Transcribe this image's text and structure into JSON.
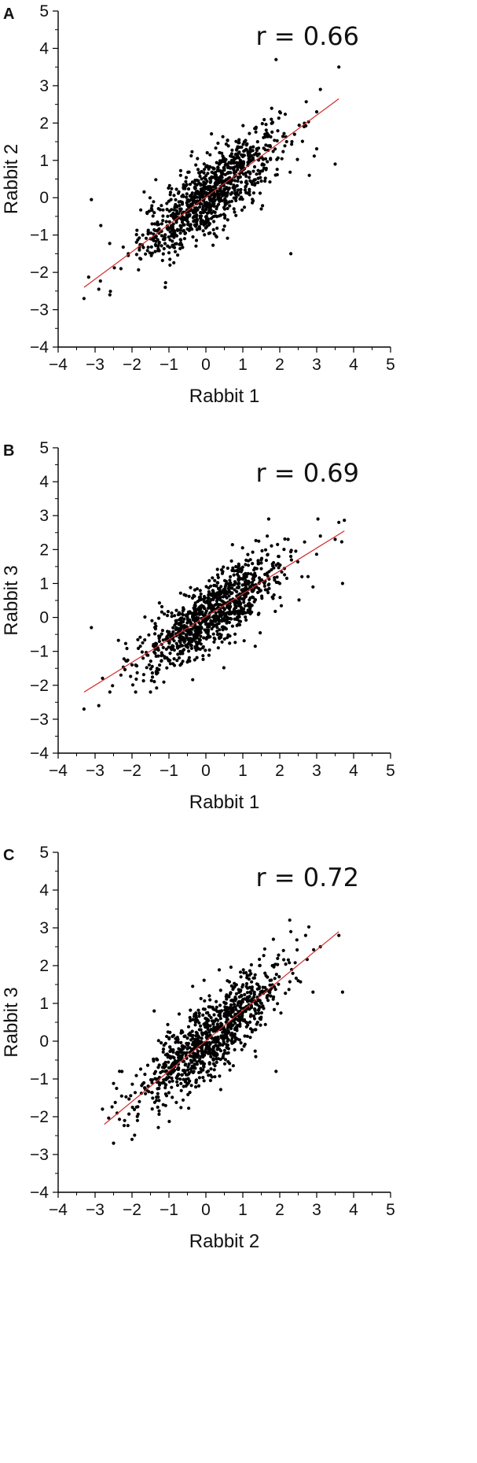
{
  "chart_data": [
    {
      "type": "scatter",
      "panel": "A",
      "xlabel": "Rabbit 1",
      "ylabel": "Rabbit 2",
      "annotation": "r = 0.66",
      "xlim": [
        -4,
        5
      ],
      "ylim": [
        -4,
        5
      ],
      "xticks": [
        -4,
        -3,
        -2,
        -1,
        0,
        1,
        2,
        3,
        4,
        5
      ],
      "yticks": [
        -4,
        -3,
        -2,
        -1,
        0,
        1,
        2,
        3,
        4,
        5
      ],
      "grid": false,
      "point_color": "#000000",
      "fit_color": "#d42a2a",
      "fit_line": [
        [
          -3.3,
          -2.4
        ],
        [
          3.6,
          2.65
        ]
      ],
      "points_sample": [
        [
          -3.3,
          -2.7
        ],
        [
          -3.1,
          -0.05
        ],
        [
          -2.9,
          -2.45
        ],
        [
          -2.6,
          -2.6
        ],
        [
          -2.3,
          -1.9
        ],
        [
          -2.1,
          -1.5
        ],
        [
          -1.8,
          -1.4
        ],
        [
          -1.5,
          -1.1
        ],
        [
          -1.2,
          -0.9
        ],
        [
          -1.1,
          -2.4
        ],
        [
          -0.9,
          -0.5
        ],
        [
          -0.7,
          -0.3
        ],
        [
          -0.5,
          -0.2
        ],
        [
          -0.3,
          0.0
        ],
        [
          -0.1,
          0.1
        ],
        [
          0.0,
          -0.2
        ],
        [
          0.1,
          0.3
        ],
        [
          0.2,
          0.1
        ],
        [
          0.3,
          0.5
        ],
        [
          0.4,
          0.3
        ],
        [
          0.5,
          0.8
        ],
        [
          0.6,
          0.4
        ],
        [
          0.7,
          1.0
        ],
        [
          0.8,
          0.6
        ],
        [
          1.0,
          1.1
        ],
        [
          1.2,
          1.3
        ],
        [
          1.4,
          1.5
        ],
        [
          1.5,
          -0.3
        ],
        [
          1.6,
          1.7
        ],
        [
          1.8,
          2.0
        ],
        [
          1.9,
          3.7
        ],
        [
          2.0,
          2.3
        ],
        [
          2.3,
          -1.5
        ],
        [
          2.4,
          1.7
        ],
        [
          2.8,
          0.6
        ],
        [
          3.0,
          2.3
        ],
        [
          3.1,
          2.9
        ],
        [
          3.5,
          0.9
        ],
        [
          3.6,
          3.5
        ]
      ],
      "n_points_approx": 1000
    },
    {
      "type": "scatter",
      "panel": "B",
      "xlabel": "Rabbit 1",
      "ylabel": "Rabbit 3",
      "annotation": "r = 0.69",
      "xlim": [
        -4,
        5
      ],
      "ylim": [
        -4,
        5
      ],
      "xticks": [
        -4,
        -3,
        -2,
        -1,
        0,
        1,
        2,
        3,
        4,
        5
      ],
      "yticks": [
        -4,
        -3,
        -2,
        -1,
        0,
        1,
        2,
        3,
        4,
        5
      ],
      "grid": false,
      "point_color": "#000000",
      "fit_color": "#d42a2a",
      "fit_line": [
        [
          -3.3,
          -2.2
        ],
        [
          3.75,
          2.55
        ]
      ],
      "points_sample": [
        [
          -3.3,
          -2.7
        ],
        [
          -3.1,
          -0.3
        ],
        [
          -2.9,
          -2.6
        ],
        [
          -2.6,
          -2.2
        ],
        [
          -2.3,
          -1.7
        ],
        [
          -2.0,
          -1.4
        ],
        [
          -1.7,
          -1.2
        ],
        [
          -1.5,
          -2.2
        ],
        [
          -1.3,
          -0.9
        ],
        [
          -1.0,
          -0.7
        ],
        [
          -0.8,
          -0.5
        ],
        [
          -0.5,
          -0.3
        ],
        [
          -0.3,
          -0.1
        ],
        [
          -0.1,
          0.1
        ],
        [
          0.0,
          -0.2
        ],
        [
          0.1,
          0.3
        ],
        [
          0.3,
          0.4
        ],
        [
          0.5,
          0.7
        ],
        [
          0.7,
          0.5
        ],
        [
          0.9,
          1.0
        ],
        [
          1.1,
          1.2
        ],
        [
          1.3,
          1.4
        ],
        [
          1.5,
          1.7
        ],
        [
          1.7,
          2.9
        ],
        [
          1.8,
          0.6
        ],
        [
          2.0,
          1.0
        ],
        [
          2.3,
          1.8
        ],
        [
          2.6,
          1.2
        ],
        [
          2.9,
          0.9
        ],
        [
          3.1,
          2.4
        ],
        [
          3.5,
          2.3
        ],
        [
          3.6,
          2.8
        ],
        [
          3.7,
          1.0
        ]
      ],
      "n_points_approx": 1000
    },
    {
      "type": "scatter",
      "panel": "C",
      "xlabel": "Rabbit 2",
      "ylabel": "Rabbit 3",
      "annotation": "r = 0.72",
      "xlim": [
        -4,
        5
      ],
      "ylim": [
        -4,
        5
      ],
      "xticks": [
        -4,
        -3,
        -2,
        -1,
        0,
        1,
        2,
        3,
        4,
        5
      ],
      "yticks": [
        -4,
        -3,
        -2,
        -1,
        0,
        1,
        2,
        3,
        4,
        5
      ],
      "grid": false,
      "point_color": "#000000",
      "fit_color": "#d42a2a",
      "fit_line": [
        [
          -2.75,
          -2.2
        ],
        [
          3.6,
          2.9
        ]
      ],
      "points_sample": [
        [
          -2.8,
          -1.8
        ],
        [
          -2.5,
          -2.7
        ],
        [
          -2.2,
          -2.1
        ],
        [
          -2.0,
          -2.6
        ],
        [
          -1.8,
          -1.6
        ],
        [
          -1.6,
          -1.3
        ],
        [
          -1.4,
          0.8
        ],
        [
          -1.3,
          -1.0
        ],
        [
          -1.1,
          -0.8
        ],
        [
          -0.9,
          -0.6
        ],
        [
          -0.7,
          -0.4
        ],
        [
          -0.5,
          -0.2
        ],
        [
          -0.3,
          0.0
        ],
        [
          -0.1,
          0.2
        ],
        [
          0.0,
          -0.1
        ],
        [
          0.2,
          0.3
        ],
        [
          0.4,
          0.6
        ],
        [
          0.6,
          0.4
        ],
        [
          0.8,
          0.9
        ],
        [
          1.0,
          1.1
        ],
        [
          1.2,
          1.3
        ],
        [
          1.4,
          0.5
        ],
        [
          1.6,
          1.8
        ],
        [
          1.8,
          2.0
        ],
        [
          1.9,
          -0.8
        ],
        [
          2.1,
          2.4
        ],
        [
          2.3,
          2.9
        ],
        [
          2.5,
          1.6
        ],
        [
          2.7,
          2.8
        ],
        [
          2.9,
          1.3
        ],
        [
          3.1,
          2.5
        ],
        [
          3.6,
          2.8
        ],
        [
          3.7,
          1.3
        ]
      ],
      "n_points_approx": 1000
    }
  ]
}
